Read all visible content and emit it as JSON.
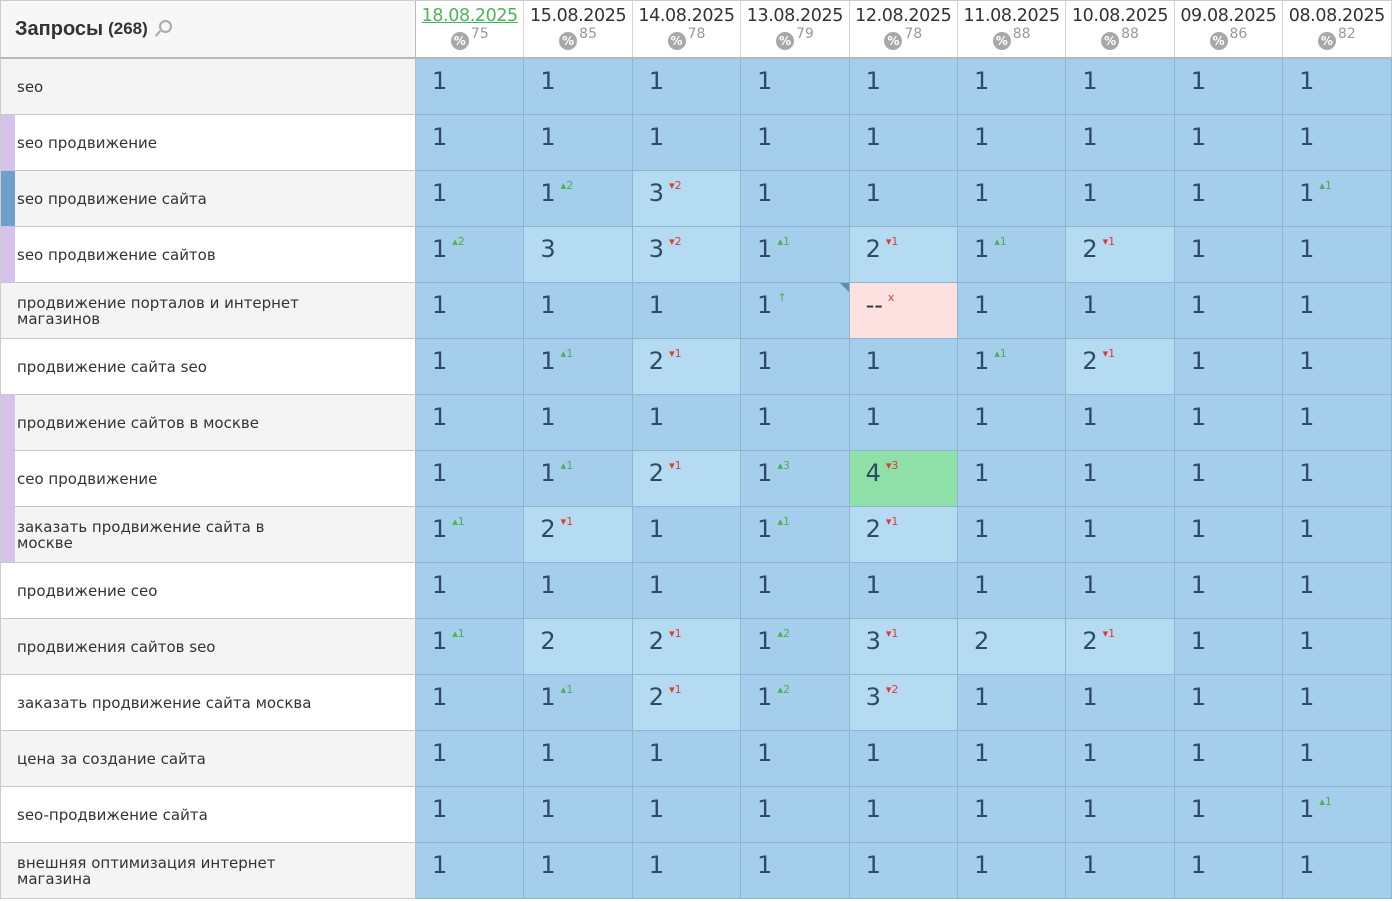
{
  "header": {
    "title": "Запросы",
    "count": "(268)"
  },
  "colors": {
    "rank1": "#a5cdec",
    "rank2_3": "#b5dbf2",
    "missing": "#fde0e0",
    "highlight": "#8fdfa9",
    "strip_purple": "#d7c2ec",
    "strip_blue": "#6f9fcd"
  },
  "dates": [
    {
      "date": "18.08.2025",
      "pct": "75",
      "current": true
    },
    {
      "date": "15.08.2025",
      "pct": "85"
    },
    {
      "date": "14.08.2025",
      "pct": "78"
    },
    {
      "date": "13.08.2025",
      "pct": "79"
    },
    {
      "date": "12.08.2025",
      "pct": "78"
    },
    {
      "date": "11.08.2025",
      "pct": "88"
    },
    {
      "date": "10.08.2025",
      "pct": "88"
    },
    {
      "date": "09.08.2025",
      "pct": "86"
    },
    {
      "date": "08.08.2025",
      "pct": "82"
    }
  ],
  "rows": [
    {
      "keyword": "seo",
      "strip": "",
      "cells": [
        [
          "1"
        ],
        [
          "1"
        ],
        [
          "1"
        ],
        [
          "1"
        ],
        [
          "1"
        ],
        [
          "1"
        ],
        [
          "1"
        ],
        [
          "1"
        ],
        [
          "1"
        ]
      ]
    },
    {
      "keyword": "seo продвижение",
      "strip": "purple",
      "cells": [
        [
          "1"
        ],
        [
          "1"
        ],
        [
          "1"
        ],
        [
          "1"
        ],
        [
          "1"
        ],
        [
          "1"
        ],
        [
          "1"
        ],
        [
          "1"
        ],
        [
          "1"
        ]
      ]
    },
    {
      "keyword": "seo продвижение сайта",
      "strip": "blue",
      "cells": [
        [
          "1"
        ],
        [
          "1",
          "+2"
        ],
        [
          "3",
          "-2"
        ],
        [
          "1"
        ],
        [
          "1"
        ],
        [
          "1"
        ],
        [
          "1"
        ],
        [
          "1"
        ],
        [
          "1",
          "+1"
        ]
      ]
    },
    {
      "keyword": "seo продвижение сайтов",
      "strip": "purple",
      "cells": [
        [
          "1",
          "+2"
        ],
        [
          "3"
        ],
        [
          "3",
          "-2"
        ],
        [
          "1",
          "+1"
        ],
        [
          "2",
          "-1"
        ],
        [
          "1",
          "+1"
        ],
        [
          "2",
          "-1"
        ],
        [
          "1"
        ],
        [
          "1"
        ]
      ]
    },
    {
      "keyword": "продвижение порталов и интернет магазинов",
      "strip": "",
      "cells": [
        [
          "1"
        ],
        [
          "1"
        ],
        [
          "1"
        ],
        [
          "1",
          "↑",
          "note"
        ],
        [
          "--",
          "x"
        ],
        [
          "1"
        ],
        [
          "1"
        ],
        [
          "1"
        ],
        [
          "1"
        ]
      ]
    },
    {
      "keyword": "продвижение сайта seo",
      "strip": "",
      "cells": [
        [
          "1"
        ],
        [
          "1",
          "+1"
        ],
        [
          "2",
          "-1"
        ],
        [
          "1"
        ],
        [
          "1"
        ],
        [
          "1",
          "+1"
        ],
        [
          "2",
          "-1"
        ],
        [
          "1"
        ],
        [
          "1"
        ]
      ]
    },
    {
      "keyword": "продвижение сайтов в москве",
      "strip": "purple",
      "cells": [
        [
          "1"
        ],
        [
          "1"
        ],
        [
          "1"
        ],
        [
          "1"
        ],
        [
          "1"
        ],
        [
          "1"
        ],
        [
          "1"
        ],
        [
          "1"
        ],
        [
          "1"
        ]
      ]
    },
    {
      "keyword": "сео продвижение",
      "strip": "purple",
      "cells": [
        [
          "1"
        ],
        [
          "1",
          "+1"
        ],
        [
          "2",
          "-1"
        ],
        [
          "1",
          "+3"
        ],
        [
          "4",
          "-3",
          "highlight"
        ],
        [
          "1"
        ],
        [
          "1"
        ],
        [
          "1"
        ],
        [
          "1"
        ]
      ]
    },
    {
      "keyword": "заказать продвижение сайта в москве",
      "strip": "purple",
      "cells": [
        [
          "1",
          "+1"
        ],
        [
          "2",
          "-1"
        ],
        [
          "1"
        ],
        [
          "1",
          "+1"
        ],
        [
          "2",
          "-1"
        ],
        [
          "1"
        ],
        [
          "1"
        ],
        [
          "1"
        ],
        [
          "1"
        ]
      ]
    },
    {
      "keyword": "продвижение сео",
      "strip": "",
      "cells": [
        [
          "1"
        ],
        [
          "1"
        ],
        [
          "1"
        ],
        [
          "1"
        ],
        [
          "1"
        ],
        [
          "1"
        ],
        [
          "1"
        ],
        [
          "1"
        ],
        [
          "1"
        ]
      ]
    },
    {
      "keyword": "продвижения сайтов seo",
      "strip": "",
      "cells": [
        [
          "1",
          "+1"
        ],
        [
          "2"
        ],
        [
          "2",
          "-1"
        ],
        [
          "1",
          "+2"
        ],
        [
          "3",
          "-1"
        ],
        [
          "2"
        ],
        [
          "2",
          "-1"
        ],
        [
          "1"
        ],
        [
          "1"
        ]
      ]
    },
    {
      "keyword": "заказать продвижение сайта москва",
      "strip": "",
      "cells": [
        [
          "1"
        ],
        [
          "1",
          "+1"
        ],
        [
          "2",
          "-1"
        ],
        [
          "1",
          "+2"
        ],
        [
          "3",
          "-2"
        ],
        [
          "1"
        ],
        [
          "1"
        ],
        [
          "1"
        ],
        [
          "1"
        ]
      ]
    },
    {
      "keyword": "цена за создание сайта",
      "strip": "",
      "cells": [
        [
          "1"
        ],
        [
          "1"
        ],
        [
          "1"
        ],
        [
          "1"
        ],
        [
          "1"
        ],
        [
          "1"
        ],
        [
          "1"
        ],
        [
          "1"
        ],
        [
          "1"
        ]
      ]
    },
    {
      "keyword": "seo-продвижение сайта",
      "strip": "",
      "cells": [
        [
          "1"
        ],
        [
          "1"
        ],
        [
          "1"
        ],
        [
          "1"
        ],
        [
          "1"
        ],
        [
          "1"
        ],
        [
          "1"
        ],
        [
          "1"
        ],
        [
          "1",
          "+1"
        ]
      ]
    },
    {
      "keyword": "внешняя оптимизация интернет магазина",
      "strip": "",
      "cells": [
        [
          "1"
        ],
        [
          "1"
        ],
        [
          "1"
        ],
        [
          "1"
        ],
        [
          "1"
        ],
        [
          "1"
        ],
        [
          "1"
        ],
        [
          "1"
        ],
        [
          "1"
        ]
      ]
    }
  ]
}
